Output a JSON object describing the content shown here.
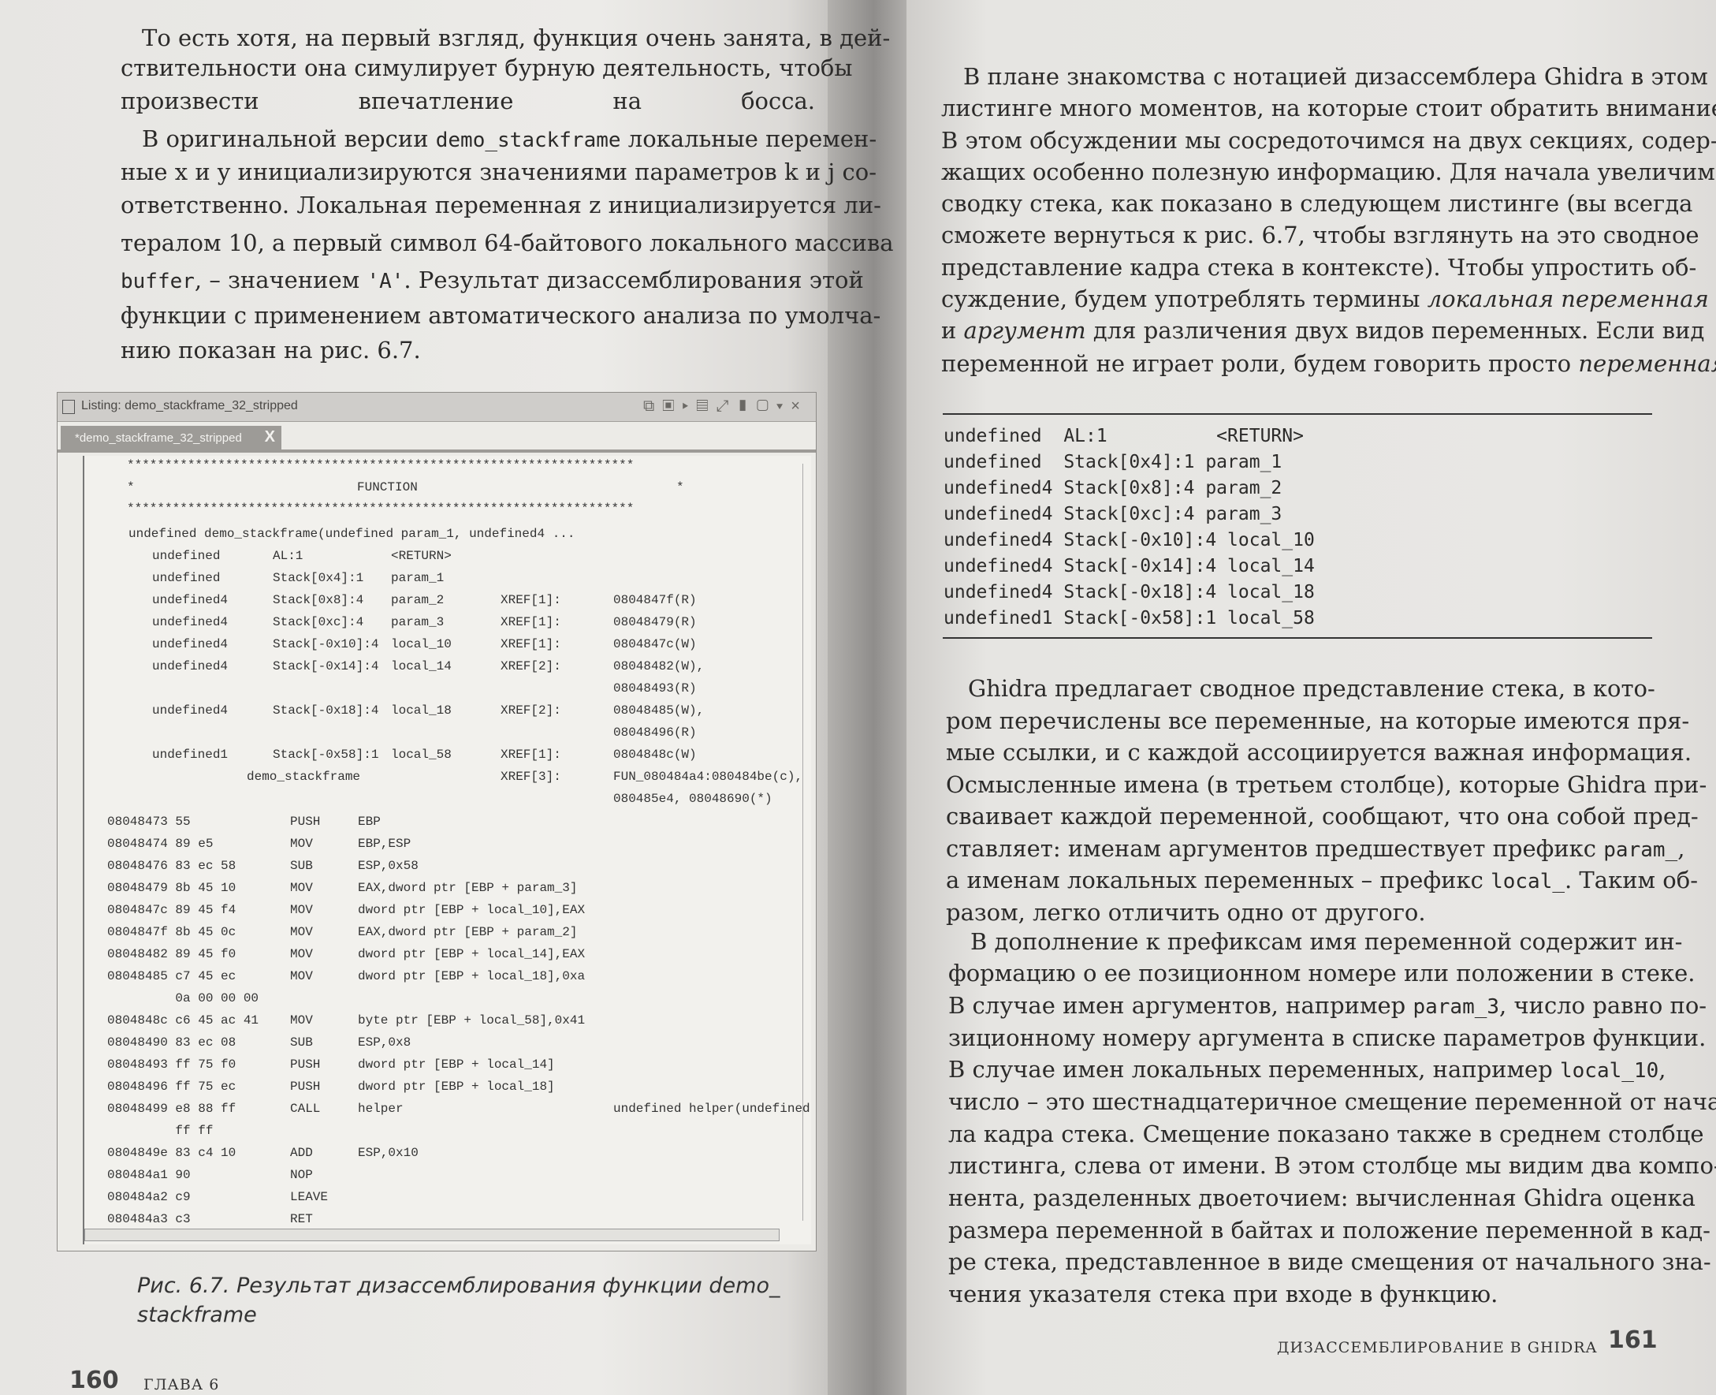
{
  "left_page": {
    "paragraph_lines": [
      [
        {
          "t": "То есть хотя, на первый взгляд, функция очень занята, в дей-"
        }
      ],
      [
        {
          "t": "ствительности она симулирует бурную деятельность, чтобы"
        }
      ],
      [
        {
          "t": "произвести впечатление на босса."
        }
      ],
      [
        {
          "t": "В оригинальной версии "
        },
        {
          "t": "demo_stackframe",
          "s": "mono"
        },
        {
          "t": " локальные перемен-"
        }
      ],
      [
        {
          "t": "ные x и y инициализируются значениями параметров k и j со-"
        }
      ],
      [
        {
          "t": "ответственно. Локальная переменная z инициализируется ли-"
        }
      ],
      [
        {
          "t": "тералом 10, а первый символ 64-байтового локального массива"
        }
      ],
      [
        {
          "t": "buffer",
          "s": "mono"
        },
        {
          "t": ", – значением "
        },
        {
          "t": "'A'",
          "s": "mono"
        },
        {
          "t": ". Результат дизассемблирования этой"
        }
      ],
      [
        {
          "t": "функции с применением автоматического анализа по умолча-"
        }
      ],
      [
        {
          "t": "нию показан на рис. 6.7."
        }
      ]
    ],
    "figure": {
      "window_title": "Listing:  demo_stackframe_32_stripped",
      "tab_label": "*demo_stackframe_32_stripped",
      "tab_close": "X",
      "stars": "*******************************************************************",
      "function_star_left": "*",
      "function_label": "FUNCTION",
      "function_star_right": "*",
      "signature": "undefined demo_stackframe(undefined param_1, undefined4 ...",
      "variables": [
        [
          "undefined",
          "AL:1",
          "<RETURN>",
          "",
          ""
        ],
        [
          "undefined",
          "Stack[0x4]:1",
          "param_1",
          "",
          ""
        ],
        [
          "undefined4",
          "Stack[0x8]:4",
          "param_2",
          "XREF[1]:",
          "0804847f(R)"
        ],
        [
          "undefined4",
          "Stack[0xc]:4",
          "param_3",
          "XREF[1]:",
          "08048479(R)"
        ],
        [
          "undefined4",
          "Stack[-0x10]:4",
          "local_10",
          "XREF[1]:",
          "0804847c(W)"
        ],
        [
          "undefined4",
          "Stack[-0x14]:4",
          "local_14",
          "XREF[2]:",
          "08048482(W),"
        ],
        [
          "",
          "",
          "",
          "",
          "08048493(R)"
        ],
        [
          "undefined4",
          "Stack[-0x18]:4",
          "local_18",
          "XREF[2]:",
          "08048485(W),"
        ],
        [
          "",
          "",
          "",
          "",
          "08048496(R)"
        ],
        [
          "undefined1",
          "Stack[-0x58]:1",
          "local_58",
          "XREF[1]:",
          "0804848c(W)"
        ],
        [
          "",
          "demo_stackframe",
          "",
          "XREF[3]:",
          "FUN_080484a4:080484be(c),"
        ],
        [
          "",
          "",
          "",
          "",
          "080485e4, 08048690(*)"
        ]
      ],
      "instructions": [
        [
          "08048473 55",
          "PUSH",
          "EBP",
          ""
        ],
        [
          "08048474 89 e5",
          "MOV",
          "EBP,ESP",
          ""
        ],
        [
          "08048476 83 ec 58",
          "SUB",
          "ESP,0x58",
          ""
        ],
        [
          "08048479 8b 45 10",
          "MOV",
          "EAX,dword ptr [EBP + param_3]",
          ""
        ],
        [
          "0804847c 89 45 f4",
          "MOV",
          "dword ptr [EBP + local_10],EAX",
          ""
        ],
        [
          "0804847f 8b 45 0c",
          "MOV",
          "EAX,dword ptr [EBP + param_2]",
          ""
        ],
        [
          "08048482 89 45 f0",
          "MOV",
          "dword ptr [EBP + local_14],EAX",
          ""
        ],
        [
          "08048485 c7 45 ec",
          "MOV",
          "dword ptr [EBP + local_18],0xa",
          ""
        ],
        [
          "         0a 00 00 00",
          "",
          "",
          ""
        ],
        [
          "0804848c c6 45 ac 41",
          "MOV",
          "byte ptr [EBP + local_58],0x41",
          ""
        ],
        [
          "08048490 83 ec 08",
          "SUB",
          "ESP,0x8",
          ""
        ],
        [
          "08048493 ff 75 f0",
          "PUSH",
          "dword ptr [EBP + local_14]",
          ""
        ],
        [
          "08048496 ff 75 ec",
          "PUSH",
          "dword ptr [EBP + local_18]",
          ""
        ],
        [
          "08048499 e8 88 ff",
          "CALL",
          "helper",
          "undefined helper(undefined"
        ],
        [
          "         ff ff",
          "",
          "",
          ""
        ],
        [
          "0804849e 83 c4 10",
          "ADD",
          "ESP,0x10",
          ""
        ],
        [
          "080484a1 90",
          "NOP",
          "",
          ""
        ],
        [
          "080484a2 c9",
          "LEAVE",
          "",
          ""
        ],
        [
          "080484a3 c3",
          "RET",
          "",
          ""
        ]
      ],
      "caption_lines": [
        "Рис. 6.7. Результат дизассемблирования функции demo_",
        "stackframe"
      ]
    },
    "folio": "160",
    "running_head": "ГЛАВА 6"
  },
  "right_page": {
    "paragraph1_lines": [
      [
        {
          "t": "В плане знакомства с нотацией дизассемблера Ghidra в этом"
        }
      ],
      [
        {
          "t": "листинге много моментов, на которые стоит обратить внимание."
        }
      ],
      [
        {
          "t": "В этом обсуждении мы сосредоточимся на двух секциях, содер-"
        }
      ],
      [
        {
          "t": "жащих особенно полезную информацию. Для начала увеличим"
        }
      ],
      [
        {
          "t": "сводку стека, как показано в следующем листинге (вы всегда"
        }
      ],
      [
        {
          "t": "сможете вернуться к рис. 6.7, чтобы взглянуть на это сводное"
        }
      ],
      [
        {
          "t": "представление кадра стека в контексте). Чтобы упростить об-"
        }
      ],
      [
        {
          "t": "суждение, будем употреблять термины "
        },
        {
          "t": "локальная переменная",
          "s": "it"
        }
      ],
      [
        {
          "t": "и "
        },
        {
          "t": "аргумент",
          "s": "it"
        },
        {
          "t": " для различения двух видов переменных. Если вид"
        }
      ],
      [
        {
          "t": "переменной не играет роли, будем говорить просто "
        },
        {
          "t": "переменная",
          "s": "it"
        },
        {
          "t": "."
        }
      ]
    ],
    "code_listing": [
      "undefined  AL:1          <RETURN>",
      "undefined  Stack[0x4]:1 param_1",
      "undefined4 Stack[0x8]:4 param_2",
      "undefined4 Stack[0xc]:4 param_3",
      "undefined4 Stack[-0x10]:4 local_10",
      "undefined4 Stack[-0x14]:4 local_14",
      "undefined4 Stack[-0x18]:4 local_18",
      "undefined1 Stack[-0x58]:1 local_58"
    ],
    "paragraph2_lines": [
      [
        {
          "t": "Ghidra предлагает сводное представление стека, в кото-"
        }
      ],
      [
        {
          "t": "ром перечислены все переменные, на которые имеются пря-"
        }
      ],
      [
        {
          "t": "мые ссылки, и с каждой ассоциируется важная информация."
        }
      ],
      [
        {
          "t": "Осмысленные имена (в третьем столбце), которые Ghidra при-"
        }
      ],
      [
        {
          "t": "сваивает каждой переменной, сообщают, что она собой пред-"
        }
      ],
      [
        {
          "t": "ставляет: именам аргументов предшествует префикс "
        },
        {
          "t": "param_",
          "s": "mono"
        },
        {
          "t": ","
        }
      ],
      [
        {
          "t": "а именам локальных переменных – префикс "
        },
        {
          "t": "local_",
          "s": "mono"
        },
        {
          "t": ". Таким об-"
        }
      ],
      [
        {
          "t": "разом, легко отличить одно от другого."
        }
      ]
    ],
    "paragraph3_lines": [
      [
        {
          "t": "В дополнение к префиксам имя переменной содержит ин-"
        }
      ],
      [
        {
          "t": "формацию о ее позиционном номере или положении в стеке."
        }
      ],
      [
        {
          "t": "В случае имен аргументов, например "
        },
        {
          "t": "param_3",
          "s": "mono"
        },
        {
          "t": ", число равно по-"
        }
      ],
      [
        {
          "t": "зиционному номеру аргумента в списке параметров функции."
        }
      ],
      [
        {
          "t": "В случае имен локальных переменных, например "
        },
        {
          "t": "local_10",
          "s": "mono"
        },
        {
          "t": ","
        }
      ],
      [
        {
          "t": "число – это шестнадцатеричное смещение переменной от нача-"
        }
      ],
      [
        {
          "t": "ла кадра стека. Смещение показано также в среднем столбце"
        }
      ],
      [
        {
          "t": "листинга, слева от имени. В этом столбце мы видим два компо-"
        }
      ],
      [
        {
          "t": "нента, разделенных двоеточием: вычисленная Ghidra оценка"
        }
      ],
      [
        {
          "t": "размера переменной в байтах и положение переменной в кад-"
        }
      ],
      [
        {
          "t": "ре стека, представленное в виде смещения от начального зна-"
        }
      ],
      [
        {
          "t": "чения указателя стека при входе в функцию."
        }
      ]
    ],
    "running_head": "ДИЗАССЕМБЛИРОВАНИЕ В GHIDRA",
    "folio": "161"
  }
}
